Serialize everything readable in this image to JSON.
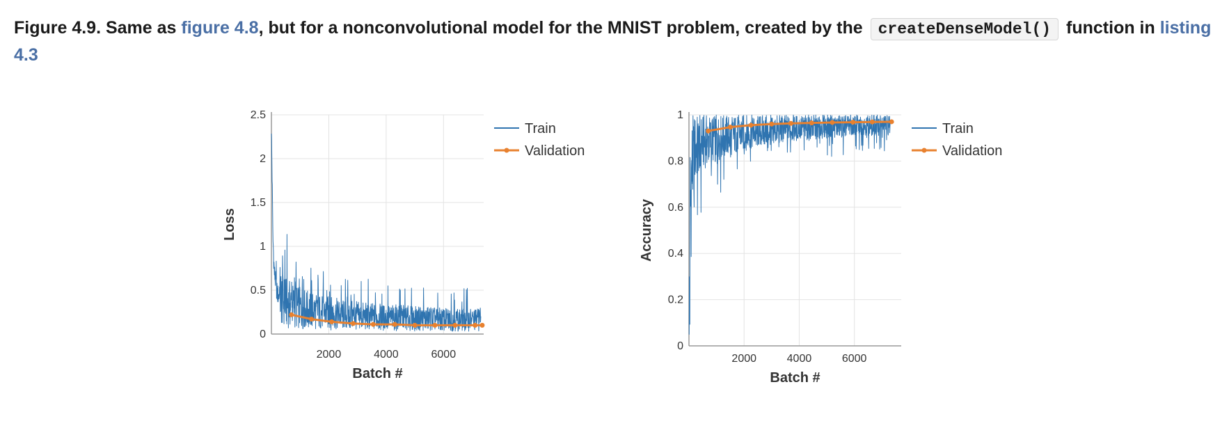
{
  "caption": {
    "prefix": "Figure 4.9. Same as ",
    "link1": "figure 4.8",
    "middle": ", but for a nonconvolutional model for the MNIST problem, created by the",
    "code": "createDenseModel()",
    "suffix": "function in",
    "link2": "listing 4.3"
  },
  "colors": {
    "train": "#2f74b0",
    "validation": "#e8812f",
    "grid": "#e3e3e3",
    "axis": "#999999",
    "text": "#333333"
  },
  "chart_data": [
    {
      "type": "line",
      "xlabel": "Batch #",
      "ylabel": "Loss",
      "xlim": [
        0,
        7400
      ],
      "ylim": [
        0,
        2.5
      ],
      "xticks": [
        2000,
        4000,
        6000
      ],
      "yticks": [
        0,
        0.5,
        1,
        1.5,
        2,
        2.5
      ],
      "grid": true,
      "legend_position": "right",
      "series": [
        {
          "name": "Train",
          "x": [
            0,
            50,
            100,
            200,
            400,
            700,
            1000,
            1500,
            2000,
            2500,
            3000,
            3500,
            4000,
            4500,
            5000,
            5500,
            6000,
            6500,
            7000,
            7300
          ],
          "y": [
            2.35,
            1.1,
            0.7,
            0.45,
            0.35,
            0.3,
            0.27,
            0.24,
            0.22,
            0.2,
            0.19,
            0.18,
            0.17,
            0.17,
            0.16,
            0.16,
            0.15,
            0.15,
            0.15,
            0.15
          ]
        },
        {
          "name": "Validation",
          "x": [
            700,
            1400,
            2100,
            2850,
            3550,
            4300,
            5000,
            5700,
            6400,
            7100,
            7350
          ],
          "y": [
            0.22,
            0.17,
            0.14,
            0.12,
            0.11,
            0.11,
            0.1,
            0.1,
            0.1,
            0.1,
            0.1
          ]
        }
      ]
    },
    {
      "type": "line",
      "xlabel": "Batch #",
      "ylabel": "Accuracy",
      "xlim": [
        0,
        7700
      ],
      "ylim": [
        0,
        1
      ],
      "xticks": [
        2000,
        4000,
        6000
      ],
      "yticks": [
        0,
        0.2,
        0.4,
        0.6,
        0.8,
        1
      ],
      "grid": true,
      "legend_position": "right",
      "series": [
        {
          "name": "Train",
          "x": [
            0,
            50,
            100,
            200,
            400,
            700,
            1000,
            1500,
            2000,
            2500,
            3000,
            3500,
            4000,
            4500,
            5000,
            5500,
            6000,
            6500,
            7000,
            7300
          ],
          "y": [
            0.11,
            0.62,
            0.78,
            0.86,
            0.89,
            0.9,
            0.91,
            0.92,
            0.93,
            0.935,
            0.94,
            0.945,
            0.95,
            0.95,
            0.955,
            0.955,
            0.96,
            0.96,
            0.96,
            0.96
          ]
        },
        {
          "name": "Validation",
          "x": [
            700,
            1500,
            2250,
            3000,
            3700,
            4450,
            5200,
            5950,
            6650,
            7350
          ],
          "y": [
            0.93,
            0.947,
            0.955,
            0.96,
            0.963,
            0.965,
            0.967,
            0.968,
            0.969,
            0.97
          ]
        }
      ]
    }
  ]
}
